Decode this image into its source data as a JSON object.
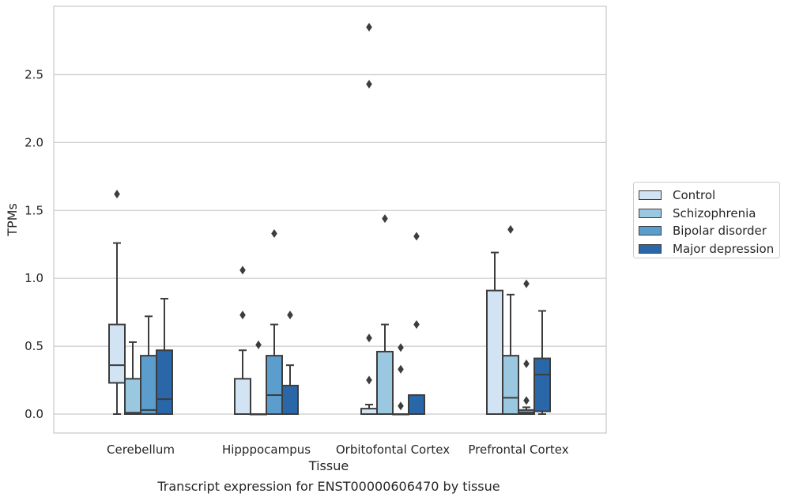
{
  "chart_data": {
    "type": "boxplot",
    "title": "",
    "xlabel": "Tissue",
    "ylabel": "TPMs",
    "caption": "Transcript expression for ENST00000606470 by tissue",
    "ylim": [
      -0.14,
      2.98
    ],
    "yticks": [
      "0.0",
      "0.5",
      "1.0",
      "1.5",
      "2.0",
      "2.5"
    ],
    "grid": "horizontal",
    "legend_position": "right",
    "categories": [
      "Cerebellum",
      "Hipppocampus",
      "Orbitofontal Cortex",
      "Prefrontal Cortex"
    ],
    "series": [
      {
        "name": "Control",
        "color": "#d2e3f3",
        "boxes": [
          {
            "whislo": 0.0,
            "q1": 0.23,
            "med": 0.36,
            "q3": 0.66,
            "whishi": 1.26,
            "fliers": [
              1.62
            ]
          },
          {
            "whislo": 0.0,
            "q1": 0.0,
            "med": 0.0,
            "q3": 0.26,
            "whishi": 0.47,
            "fliers": [
              0.73,
              1.06
            ]
          },
          {
            "whislo": 0.0,
            "q1": 0.0,
            "med": 0.0,
            "q3": 0.04,
            "whishi": 0.07,
            "fliers": [
              0.25,
              0.56,
              2.43,
              2.85
            ]
          },
          {
            "whislo": 0.0,
            "q1": 0.0,
            "med": 0.0,
            "q3": 0.91,
            "whishi": 1.19,
            "fliers": []
          }
        ]
      },
      {
        "name": "Schizophrenia",
        "color": "#9ac8e0",
        "boxes": [
          {
            "whislo": 0.0,
            "q1": 0.0,
            "med": 0.01,
            "q3": 0.26,
            "whishi": 0.53,
            "fliers": []
          },
          {
            "whislo": 0.0,
            "q1": 0.0,
            "med": 0.0,
            "q3": 0.0,
            "whishi": 0.0,
            "fliers": [
              0.51
            ]
          },
          {
            "whislo": 0.0,
            "q1": 0.0,
            "med": 0.0,
            "q3": 0.46,
            "whishi": 0.66,
            "fliers": [
              1.44
            ]
          },
          {
            "whislo": 0.0,
            "q1": 0.0,
            "med": 0.12,
            "q3": 0.43,
            "whishi": 0.88,
            "fliers": [
              1.36
            ]
          }
        ]
      },
      {
        "name": "Bipolar disorder",
        "color": "#5b9ecd",
        "boxes": [
          {
            "whislo": 0.0,
            "q1": 0.0,
            "med": 0.03,
            "q3": 0.43,
            "whishi": 0.72,
            "fliers": []
          },
          {
            "whislo": 0.0,
            "q1": 0.0,
            "med": 0.14,
            "q3": 0.43,
            "whishi": 0.66,
            "fliers": [
              1.33
            ]
          },
          {
            "whislo": 0.0,
            "q1": 0.0,
            "med": 0.0,
            "q3": 0.0,
            "whishi": 0.0,
            "fliers": [
              0.06,
              0.33,
              0.49
            ]
          },
          {
            "whislo": 0.0,
            "q1": 0.0,
            "med": 0.01,
            "q3": 0.03,
            "whishi": 0.05,
            "fliers": [
              0.1,
              0.37,
              0.96
            ]
          }
        ]
      },
      {
        "name": "Major depression",
        "color": "#2967a9",
        "boxes": [
          {
            "whislo": 0.0,
            "q1": 0.0,
            "med": 0.11,
            "q3": 0.47,
            "whishi": 0.85,
            "fliers": []
          },
          {
            "whislo": 0.0,
            "q1": 0.0,
            "med": 0.0,
            "q3": 0.21,
            "whishi": 0.36,
            "fliers": [
              0.73
            ]
          },
          {
            "whislo": 0.0,
            "q1": 0.0,
            "med": 0.0,
            "q3": 0.14,
            "whishi": 0.14,
            "fliers": [
              0.66,
              1.31
            ]
          },
          {
            "whislo": 0.0,
            "q1": 0.02,
            "med": 0.29,
            "q3": 0.41,
            "whishi": 0.76,
            "fliers": []
          }
        ]
      }
    ]
  }
}
